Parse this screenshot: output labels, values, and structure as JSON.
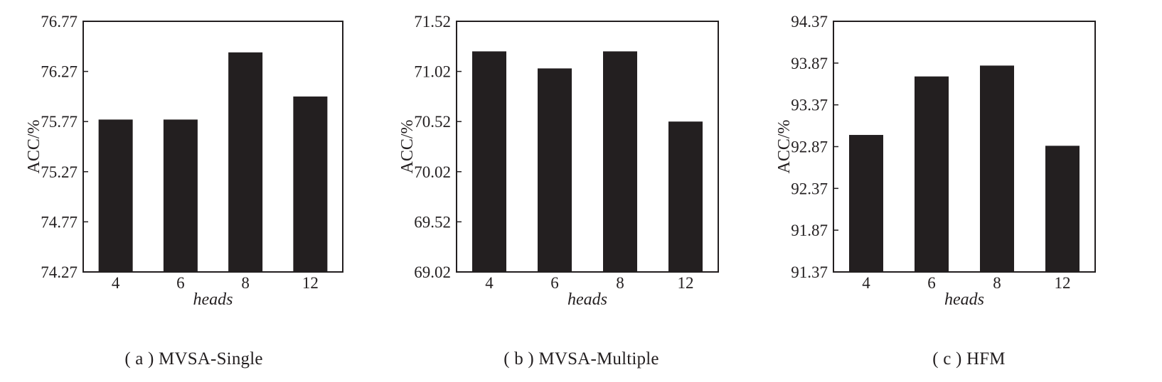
{
  "chart_data": [
    {
      "type": "bar",
      "caption": "( a ) MVSA-Single",
      "xlabel": "heads",
      "ylabel": "ACC/%",
      "categories": [
        "4",
        "6",
        "8",
        "12"
      ],
      "values": [
        75.79,
        75.79,
        76.46,
        76.02
      ],
      "ylim": [
        74.27,
        76.77
      ],
      "yticks": [
        "74.27",
        "74.77",
        "75.27",
        "75.77",
        "76.27",
        "76.77"
      ],
      "grid": false,
      "color": "#231f20"
    },
    {
      "type": "bar",
      "caption": "( b ) MVSA-Multiple",
      "xlabel": "heads",
      "ylabel": "ACC/%",
      "categories": [
        "4",
        "6",
        "8",
        "12"
      ],
      "values": [
        71.22,
        71.05,
        71.22,
        70.52
      ],
      "ylim": [
        69.02,
        71.52
      ],
      "yticks": [
        "69.02",
        "69.52",
        "70.02",
        "70.52",
        "71.02",
        "71.52"
      ],
      "grid": false,
      "color": "#231f20"
    },
    {
      "type": "bar",
      "caption": "( c ) HFM",
      "xlabel": "heads",
      "ylabel": "ACC/%",
      "categories": [
        "4",
        "6",
        "8",
        "12"
      ],
      "values": [
        93.01,
        93.71,
        93.84,
        92.88
      ],
      "ylim": [
        91.37,
        94.37
      ],
      "yticks": [
        "91.37",
        "91.87",
        "92.37",
        "92.87",
        "93.37",
        "93.87",
        "94.37"
      ],
      "grid": false,
      "color": "#231f20"
    }
  ]
}
